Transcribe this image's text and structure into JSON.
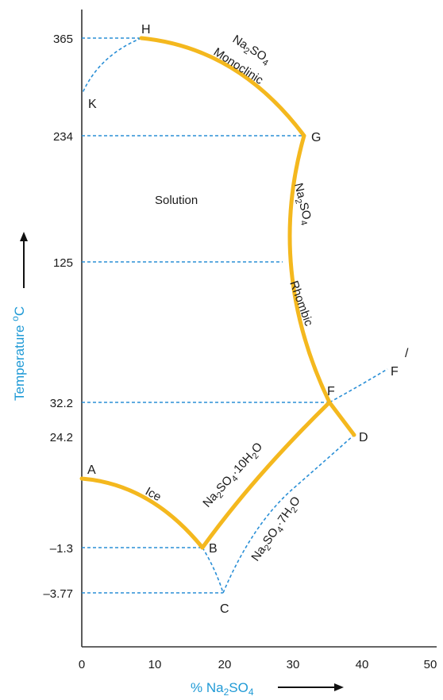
{
  "colors": {
    "solid_curve": "#F4B81E",
    "dashed_line": "#2A8FD6",
    "axis_title": "#1F9AD6",
    "text": "#1a1a1a"
  },
  "axes": {
    "x_title_prefix": "% Na",
    "x_title_sub": "2",
    "x_title_suffix": "SO",
    "x_title_sub2": "4",
    "y_title_main": "Temperature ",
    "y_title_sup": "o",
    "y_title_end": "C",
    "x_ticks": [
      "0",
      "10",
      "20",
      "30",
      "40",
      "50"
    ],
    "y_ticks": [
      "365",
      "234",
      "125",
      "32.2",
      "24.2",
      "–1.3",
      "–3.77"
    ]
  },
  "points": {
    "A": "A",
    "B": "B",
    "C": "C",
    "D": "D",
    "F": "F",
    "F_prime": "F",
    "F_prime_mark": "/",
    "G": "G",
    "H": "H",
    "K": "K"
  },
  "regions": {
    "solution": "Solution"
  },
  "curve_labels": {
    "ice": "Ice",
    "decahydrate_base": "Na",
    "decahydrate_sub1": "2",
    "decahydrate_mid": "SO",
    "decahydrate_sub2": "4",
    "decahydrate_end": "·10H",
    "decahydrate_sub3": "2",
    "decahydrate_tail": "O",
    "heptahydrate_base": "Na",
    "heptahydrate_sub1": "2",
    "heptahydrate_mid": "SO",
    "heptahydrate_sub2": "4",
    "heptahydrate_end": "·7H",
    "heptahydrate_sub3": "2",
    "heptahydrate_tail": "O",
    "rhombic_formula_base": "Na",
    "rhombic_formula_sub1": "2",
    "rhombic_formula_mid": "SO",
    "rhombic_formula_sub2": "4",
    "rhombic_word": "Rhombic",
    "monoclinic_formula_base": "Na",
    "monoclinic_formula_sub1": "2",
    "monoclinic_formula_mid": "SO",
    "monoclinic_formula_sub2": "4",
    "monoclinic_word": "Monoclinic"
  }
}
